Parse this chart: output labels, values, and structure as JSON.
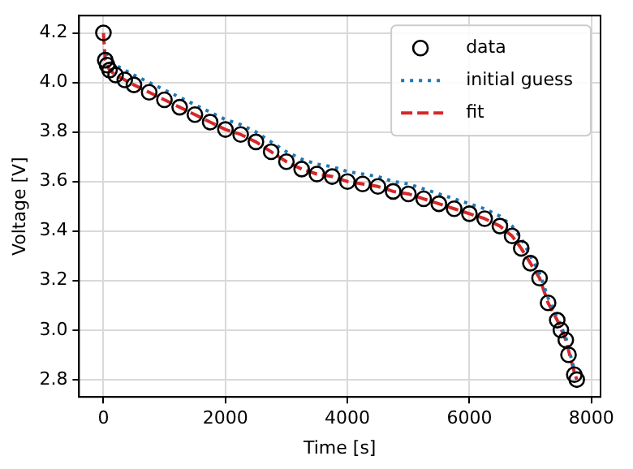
{
  "chart_data": {
    "type": "line",
    "xlabel": "Time [s]",
    "ylabel": "Voltage [V]",
    "xlim": [
      -400,
      8150
    ],
    "xticks": [
      0,
      2000,
      4000,
      6000,
      8000
    ],
    "ylim": [
      2.73,
      4.27
    ],
    "yticks": [
      2.8,
      {
        "value": 3,
        "label": "3.0"
      },
      3.2,
      3.4,
      3.6,
      3.8,
      {
        "value": 4,
        "label": "4.0"
      },
      4.2
    ],
    "grid": true,
    "legend": "top right",
    "series": [
      {
        "name": "data",
        "type": "scatter",
        "marker": "circle",
        "color": "#000000",
        "x": [
          0,
          30,
          60,
          100,
          200,
          350,
          500,
          750,
          1000,
          1250,
          1500,
          1750,
          2000,
          2250,
          2500,
          2750,
          3000,
          3250,
          3500,
          3750,
          4000,
          4250,
          4500,
          4750,
          5000,
          5250,
          5500,
          5750,
          6000,
          6250,
          6500,
          6700,
          6850,
          7000,
          7150,
          7290,
          7440,
          7500,
          7580,
          7625,
          7720,
          7760
        ],
        "values": [
          4.2,
          4.09,
          4.07,
          4.05,
          4.03,
          4.01,
          3.99,
          3.96,
          3.93,
          3.9,
          3.87,
          3.84,
          3.81,
          3.79,
          3.76,
          3.72,
          3.68,
          3.65,
          3.63,
          3.62,
          3.6,
          3.59,
          3.58,
          3.56,
          3.55,
          3.53,
          3.51,
          3.49,
          3.47,
          3.45,
          3.42,
          3.38,
          3.33,
          3.27,
          3.21,
          3.11,
          3.04,
          3.0,
          2.96,
          2.9,
          2.82,
          2.8
        ]
      },
      {
        "name": "initial guess",
        "type": "line",
        "line_style": "dotted",
        "color": "#1f77b4",
        "x": [
          50,
          100,
          200,
          350,
          500,
          750,
          1000,
          1250,
          1500,
          1750,
          2000,
          2250,
          2500,
          2750,
          3000,
          3250,
          3500,
          3750,
          4000,
          4250,
          4500,
          4750,
          5000,
          5250,
          5500,
          5750,
          6000,
          6250,
          6500,
          6700,
          6850,
          7000,
          7150,
          7290,
          7440,
          7580,
          7720
        ],
        "values": [
          4.12,
          4.1,
          4.07,
          4.05,
          4.03,
          4.0,
          3.97,
          3.94,
          3.91,
          3.88,
          3.85,
          3.83,
          3.8,
          3.76,
          3.72,
          3.69,
          3.67,
          3.66,
          3.64,
          3.63,
          3.62,
          3.6,
          3.59,
          3.57,
          3.55,
          3.53,
          3.51,
          3.49,
          3.46,
          3.42,
          3.37,
          3.3,
          3.23,
          3.13,
          3.05,
          2.97,
          2.84
        ]
      },
      {
        "name": "fit",
        "type": "line",
        "line_style": "dashed",
        "color": "#d62728",
        "x": [
          0,
          30,
          60,
          100,
          200,
          350,
          500,
          750,
          1000,
          1250,
          1500,
          1750,
          2000,
          2250,
          2500,
          2750,
          3000,
          3250,
          3500,
          3750,
          4000,
          4250,
          4500,
          4750,
          5000,
          5250,
          5500,
          5750,
          6000,
          6250,
          6500,
          6700,
          6850,
          7000,
          7150,
          7290,
          7440,
          7580,
          7720,
          7760
        ],
        "values": [
          4.2,
          4.09,
          4.07,
          4.05,
          4.03,
          4.01,
          3.99,
          3.96,
          3.93,
          3.9,
          3.87,
          3.84,
          3.81,
          3.79,
          3.76,
          3.72,
          3.68,
          3.65,
          3.63,
          3.62,
          3.6,
          3.59,
          3.58,
          3.56,
          3.55,
          3.53,
          3.51,
          3.49,
          3.47,
          3.45,
          3.42,
          3.38,
          3.33,
          3.27,
          3.21,
          3.11,
          3.04,
          2.96,
          2.83,
          2.8
        ]
      }
    ]
  }
}
